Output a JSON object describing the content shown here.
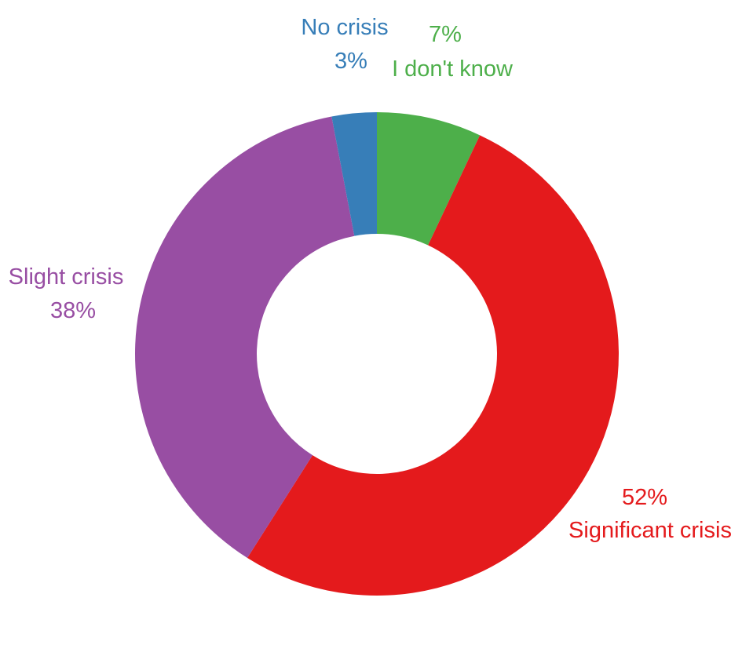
{
  "chart_data": {
    "type": "pie",
    "variant": "donut",
    "title": "",
    "slices": [
      {
        "label": "I don't know",
        "value": 7,
        "value_label": "7%",
        "color": "#4daf4a",
        "label_order": "value-first"
      },
      {
        "label": "Significant crisis",
        "value": 52,
        "value_label": "52%",
        "color": "#e41a1c",
        "label_order": "value-first"
      },
      {
        "label": "Slight crisis",
        "value": 38,
        "value_label": "38%",
        "color": "#984ea3",
        "label_order": "label-first"
      },
      {
        "label": "No crisis",
        "value": 3,
        "value_label": "3%",
        "color": "#377eb8",
        "label_order": "label-first"
      }
    ],
    "start_angle": "12 o'clock",
    "direction": "clockwise",
    "legend": "none"
  }
}
